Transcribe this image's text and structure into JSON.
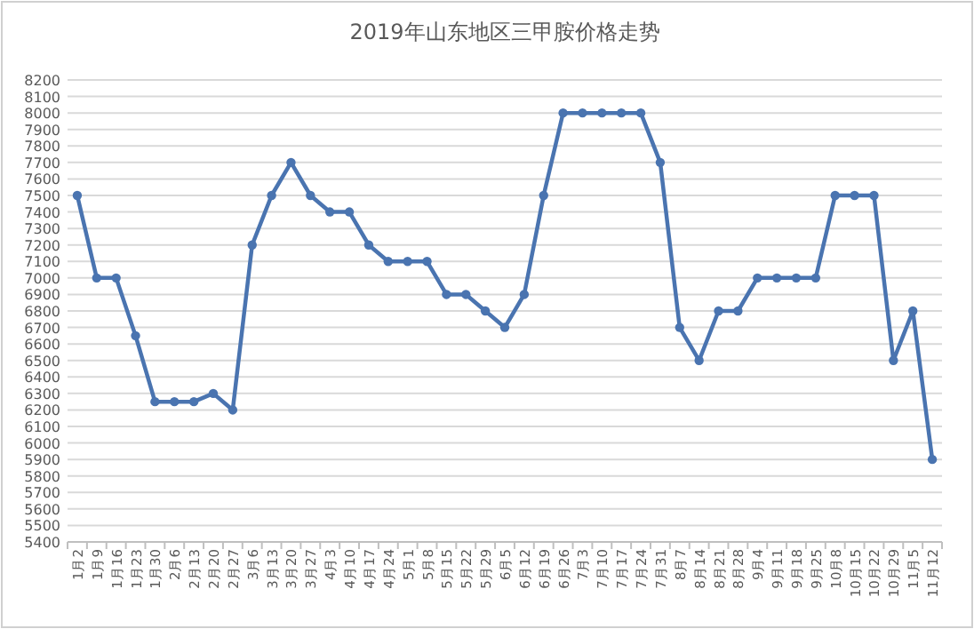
{
  "chart_data": {
    "type": "line",
    "title": "2019年山东地区三甲胺价格走势",
    "categories": [
      "1月2",
      "1月9",
      "1月16",
      "1月23",
      "1月30",
      "2月6",
      "2月13",
      "2月20",
      "2月27",
      "3月6",
      "3月13",
      "3月20",
      "3月27",
      "4月3",
      "4月10",
      "4月17",
      "4月24",
      "5月1",
      "5月8",
      "5月15",
      "5月22",
      "5月29",
      "6月5",
      "6月12",
      "6月19",
      "6月26",
      "7月3",
      "7月10",
      "7月17",
      "7月24",
      "7月31",
      "8月7",
      "8月14",
      "8月21",
      "8月28",
      "9月4",
      "9月11",
      "9月18",
      "9月25",
      "10月8",
      "10月15",
      "10月22",
      "10月29",
      "11月5",
      "11月12"
    ],
    "series": [
      {
        "color": "#4a74b0",
        "values": [
          7500,
          7000,
          7000,
          6650,
          6250,
          6250,
          6250,
          6300,
          6200,
          7200,
          7500,
          7700,
          7500,
          7400,
          7400,
          7200,
          7100,
          7100,
          7100,
          6900,
          6900,
          6800,
          6700,
          6900,
          7500,
          8000,
          8000,
          8000,
          8000,
          8000,
          7700,
          6700,
          6500,
          6800,
          6800,
          7000,
          7000,
          7000,
          7000,
          7500,
          7500,
          7500,
          6500,
          6800,
          5900
        ]
      }
    ],
    "ylim": [
      5400,
      8200
    ],
    "yticks": [
      5400,
      5500,
      5600,
      5700,
      5800,
      5900,
      6000,
      6100,
      6200,
      6300,
      6400,
      6500,
      6600,
      6700,
      6800,
      6900,
      7000,
      7100,
      7200,
      7300,
      7400,
      7500,
      7600,
      7700,
      7800,
      7900,
      8000,
      8100,
      8200
    ],
    "grid": "y",
    "marker": "circle",
    "line_style": "solid"
  }
}
